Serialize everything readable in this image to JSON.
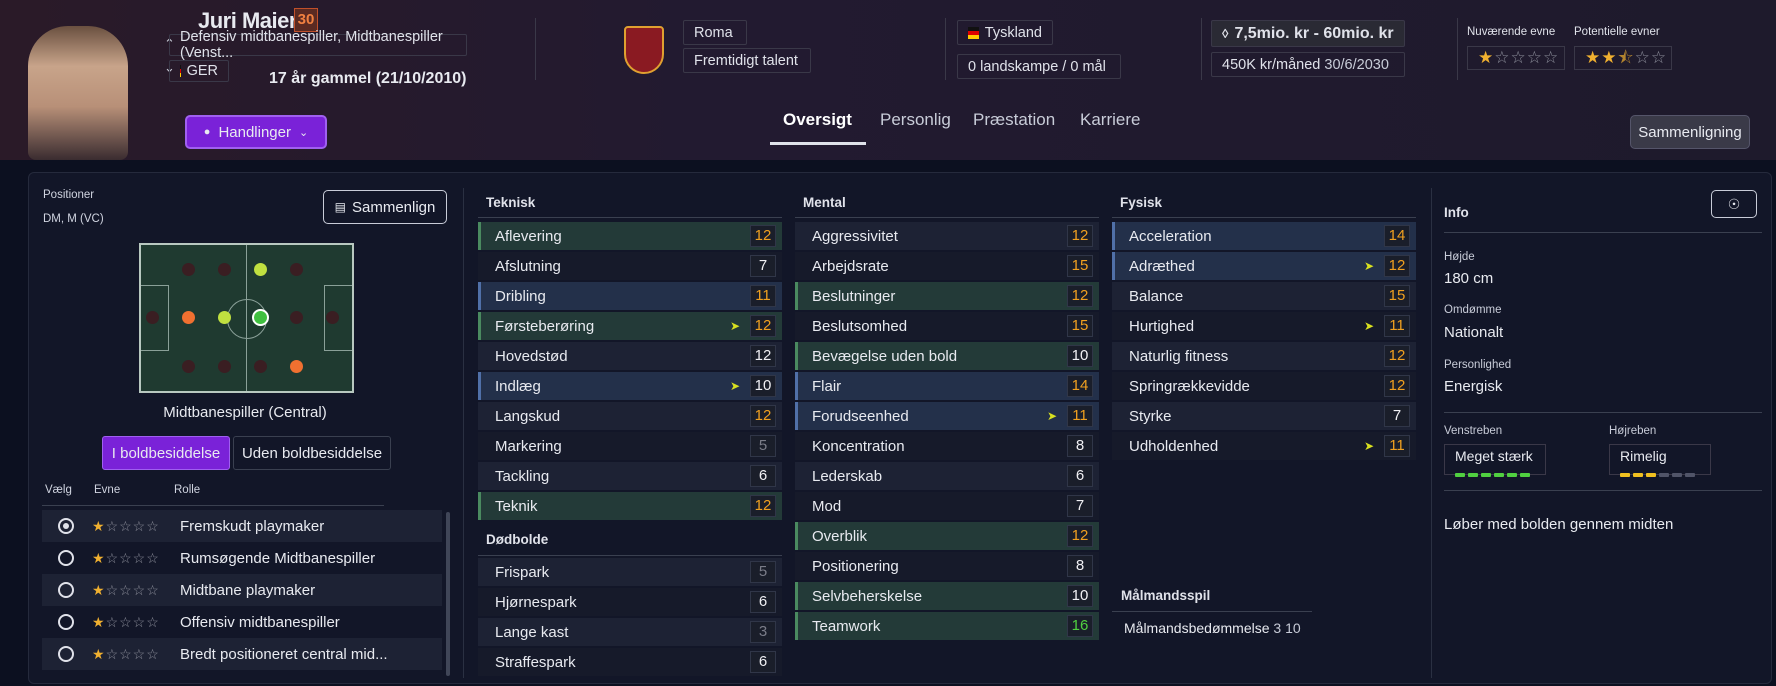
{
  "player": {
    "name": "Juri Maier",
    "ca": "30",
    "position": "Defensiv midtbanespiller, Midtbanespiller (Venst...",
    "nation_code": "GER",
    "age": "17 år gammel (21/10/2010)",
    "club": "Roma",
    "status": "Fremtidigt talent",
    "nationality": "Tyskland",
    "caps": "0 landskampe / 0 mål",
    "value": "7,5mio. kr - 60mio. kr",
    "contract_wage": "450K kr/måned",
    "contract_end": "30/6/2030"
  },
  "abilities": {
    "current_label": "Nuværende evne",
    "potential_label": "Potentielle evner",
    "current_stars": 1,
    "potential_stars": 2.5
  },
  "actions_label": "Handlinger",
  "tabs": [
    "Oversigt",
    "Personlig",
    "Præstation",
    "Karriere"
  ],
  "compare_label": "Sammenligning",
  "positions": {
    "label": "Positioner",
    "value": "DM, M (VC)",
    "compare_button": "Sammenlign",
    "role_title": "Midtbanespiller (Central)",
    "toggle_in": "I boldbesiddelse",
    "toggle_out": "Uden boldbesiddelse"
  },
  "role_headers": {
    "select": "Vælg",
    "ability": "Evne",
    "role": "Rolle"
  },
  "roles": [
    {
      "name": "Fremskudt playmaker",
      "stars": 1,
      "selected": true
    },
    {
      "name": "Rumsøgende Midtbanespiller",
      "stars": 1
    },
    {
      "name": "Midtbane playmaker",
      "stars": 1
    },
    {
      "name": "Offensiv midtbanespiller",
      "stars": 1
    },
    {
      "name": "Bredt positioneret central mid...",
      "stars": 1
    }
  ],
  "technical": {
    "title": "Teknisk",
    "attrs": [
      [
        "Aflevering",
        "12",
        "o",
        "g",
        ""
      ],
      [
        "Afslutning",
        "7",
        "w",
        "",
        ""
      ],
      [
        "Dribling",
        "11",
        "o",
        "b",
        ""
      ],
      [
        "Førsteberøring",
        "12",
        "o",
        "g",
        "up"
      ],
      [
        "Hovedstød",
        "12",
        "w",
        "",
        ""
      ],
      [
        "Indlæg",
        "10",
        "w",
        "b",
        "up"
      ],
      [
        "Langskud",
        "12",
        "o",
        "",
        ""
      ],
      [
        "Markering",
        "5",
        "d",
        "",
        ""
      ],
      [
        "Tackling",
        "6",
        "w",
        "",
        ""
      ],
      [
        "Teknik",
        "12",
        "o",
        "g",
        ""
      ]
    ]
  },
  "setpieces": {
    "title": "Dødbolde",
    "attrs": [
      [
        "Frispark",
        "5",
        "d",
        "",
        ""
      ],
      [
        "Hjørnespark",
        "6",
        "w",
        "",
        ""
      ],
      [
        "Lange kast",
        "3",
        "d",
        "",
        ""
      ],
      [
        "Straffespark",
        "6",
        "w",
        "",
        ""
      ]
    ]
  },
  "mental": {
    "title": "Mental",
    "attrs": [
      [
        "Aggressivitet",
        "12",
        "o",
        "",
        ""
      ],
      [
        "Arbejdsrate",
        "15",
        "o",
        "",
        ""
      ],
      [
        "Beslutninger",
        "12",
        "o",
        "g",
        ""
      ],
      [
        "Beslutsomhed",
        "15",
        "o",
        "",
        ""
      ],
      [
        "Bevægelse uden bold",
        "10",
        "w",
        "g",
        ""
      ],
      [
        "Flair",
        "14",
        "o",
        "b",
        ""
      ],
      [
        "Forudseenhed",
        "11",
        "o",
        "b",
        "up"
      ],
      [
        "Koncentration",
        "8",
        "w",
        "",
        ""
      ],
      [
        "Lederskab",
        "6",
        "w",
        "",
        ""
      ],
      [
        "Mod",
        "7",
        "w",
        "",
        ""
      ],
      [
        "Overblik",
        "12",
        "o",
        "g",
        ""
      ],
      [
        "Positionering",
        "8",
        "w",
        "",
        ""
      ],
      [
        "Selvbeherskelse",
        "10",
        "w",
        "g",
        ""
      ],
      [
        "Teamwork",
        "16",
        "g",
        "g",
        ""
      ]
    ]
  },
  "physical": {
    "title": "Fysisk",
    "attrs": [
      [
        "Acceleration",
        "14",
        "o",
        "b",
        ""
      ],
      [
        "Adræthed",
        "12",
        "o",
        "b",
        "up"
      ],
      [
        "Balance",
        "15",
        "o",
        "",
        ""
      ],
      [
        "Hurtighed",
        "11",
        "o",
        "",
        "up"
      ],
      [
        "Naturlig fitness",
        "12",
        "o",
        "",
        ""
      ],
      [
        "Springrækkevidde",
        "12",
        "o",
        "",
        ""
      ],
      [
        "Styrke",
        "7",
        "w",
        "",
        ""
      ],
      [
        "Udholdenhed",
        "11",
        "o",
        "",
        "up"
      ]
    ]
  },
  "gk": {
    "title": "Målmandsspil",
    "label": "Målmandsbedømmelse",
    "value": "3 10"
  },
  "info": {
    "title": "Info",
    "height_label": "Højde",
    "height": "180 cm",
    "rep_label": "Omdømme",
    "rep": "Nationalt",
    "pers_label": "Personlighed",
    "pers": "Energisk",
    "lfoot_label": "Venstreben",
    "lfoot": "Meget stærk",
    "rfoot_label": "Højreben",
    "rfoot": "Rimelig",
    "trait": "Løber med bolden gennem midten"
  },
  "colors": {
    "accent": "#7a22d8",
    "orange": "#f0a020",
    "green": "#50d040"
  }
}
